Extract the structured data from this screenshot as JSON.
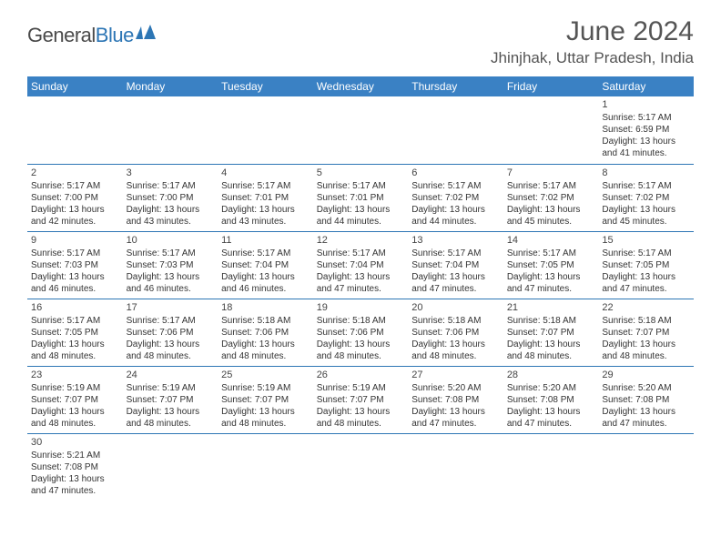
{
  "logo": {
    "text1": "General",
    "text2": "Blue"
  },
  "title": "June 2024",
  "location": "Jhinjhak, Uttar Pradesh, India",
  "colors": {
    "header_bg": "#3a81c4",
    "header_text": "#ffffff",
    "border": "#2d76b5",
    "body_text": "#333333",
    "title_text": "#555555",
    "logo_gray": "#4a4a4a",
    "logo_blue": "#2d76b5",
    "background": "#ffffff"
  },
  "typography": {
    "title_fontsize": 30,
    "location_fontsize": 17,
    "dayheader_fontsize": 12,
    "cell_fontsize": 10,
    "daynum_fontsize": 11
  },
  "day_headers": [
    "Sunday",
    "Monday",
    "Tuesday",
    "Wednesday",
    "Thursday",
    "Friday",
    "Saturday"
  ],
  "weeks": [
    [
      null,
      null,
      null,
      null,
      null,
      null,
      {
        "n": "1",
        "sr": "5:17 AM",
        "ss": "6:59 PM",
        "dl": "13 hours and 41 minutes."
      }
    ],
    [
      {
        "n": "2",
        "sr": "5:17 AM",
        "ss": "7:00 PM",
        "dl": "13 hours and 42 minutes."
      },
      {
        "n": "3",
        "sr": "5:17 AM",
        "ss": "7:00 PM",
        "dl": "13 hours and 43 minutes."
      },
      {
        "n": "4",
        "sr": "5:17 AM",
        "ss": "7:01 PM",
        "dl": "13 hours and 43 minutes."
      },
      {
        "n": "5",
        "sr": "5:17 AM",
        "ss": "7:01 PM",
        "dl": "13 hours and 44 minutes."
      },
      {
        "n": "6",
        "sr": "5:17 AM",
        "ss": "7:02 PM",
        "dl": "13 hours and 44 minutes."
      },
      {
        "n": "7",
        "sr": "5:17 AM",
        "ss": "7:02 PM",
        "dl": "13 hours and 45 minutes."
      },
      {
        "n": "8",
        "sr": "5:17 AM",
        "ss": "7:02 PM",
        "dl": "13 hours and 45 minutes."
      }
    ],
    [
      {
        "n": "9",
        "sr": "5:17 AM",
        "ss": "7:03 PM",
        "dl": "13 hours and 46 minutes."
      },
      {
        "n": "10",
        "sr": "5:17 AM",
        "ss": "7:03 PM",
        "dl": "13 hours and 46 minutes."
      },
      {
        "n": "11",
        "sr": "5:17 AM",
        "ss": "7:04 PM",
        "dl": "13 hours and 46 minutes."
      },
      {
        "n": "12",
        "sr": "5:17 AM",
        "ss": "7:04 PM",
        "dl": "13 hours and 47 minutes."
      },
      {
        "n": "13",
        "sr": "5:17 AM",
        "ss": "7:04 PM",
        "dl": "13 hours and 47 minutes."
      },
      {
        "n": "14",
        "sr": "5:17 AM",
        "ss": "7:05 PM",
        "dl": "13 hours and 47 minutes."
      },
      {
        "n": "15",
        "sr": "5:17 AM",
        "ss": "7:05 PM",
        "dl": "13 hours and 47 minutes."
      }
    ],
    [
      {
        "n": "16",
        "sr": "5:17 AM",
        "ss": "7:05 PM",
        "dl": "13 hours and 48 minutes."
      },
      {
        "n": "17",
        "sr": "5:17 AM",
        "ss": "7:06 PM",
        "dl": "13 hours and 48 minutes."
      },
      {
        "n": "18",
        "sr": "5:18 AM",
        "ss": "7:06 PM",
        "dl": "13 hours and 48 minutes."
      },
      {
        "n": "19",
        "sr": "5:18 AM",
        "ss": "7:06 PM",
        "dl": "13 hours and 48 minutes."
      },
      {
        "n": "20",
        "sr": "5:18 AM",
        "ss": "7:06 PM",
        "dl": "13 hours and 48 minutes."
      },
      {
        "n": "21",
        "sr": "5:18 AM",
        "ss": "7:07 PM",
        "dl": "13 hours and 48 minutes."
      },
      {
        "n": "22",
        "sr": "5:18 AM",
        "ss": "7:07 PM",
        "dl": "13 hours and 48 minutes."
      }
    ],
    [
      {
        "n": "23",
        "sr": "5:19 AM",
        "ss": "7:07 PM",
        "dl": "13 hours and 48 minutes."
      },
      {
        "n": "24",
        "sr": "5:19 AM",
        "ss": "7:07 PM",
        "dl": "13 hours and 48 minutes."
      },
      {
        "n": "25",
        "sr": "5:19 AM",
        "ss": "7:07 PM",
        "dl": "13 hours and 48 minutes."
      },
      {
        "n": "26",
        "sr": "5:19 AM",
        "ss": "7:07 PM",
        "dl": "13 hours and 48 minutes."
      },
      {
        "n": "27",
        "sr": "5:20 AM",
        "ss": "7:08 PM",
        "dl": "13 hours and 47 minutes."
      },
      {
        "n": "28",
        "sr": "5:20 AM",
        "ss": "7:08 PM",
        "dl": "13 hours and 47 minutes."
      },
      {
        "n": "29",
        "sr": "5:20 AM",
        "ss": "7:08 PM",
        "dl": "13 hours and 47 minutes."
      }
    ],
    [
      {
        "n": "30",
        "sr": "5:21 AM",
        "ss": "7:08 PM",
        "dl": "13 hours and 47 minutes."
      },
      null,
      null,
      null,
      null,
      null,
      null
    ]
  ],
  "labels": {
    "sunrise": "Sunrise: ",
    "sunset": "Sunset: ",
    "daylight": "Daylight: "
  }
}
